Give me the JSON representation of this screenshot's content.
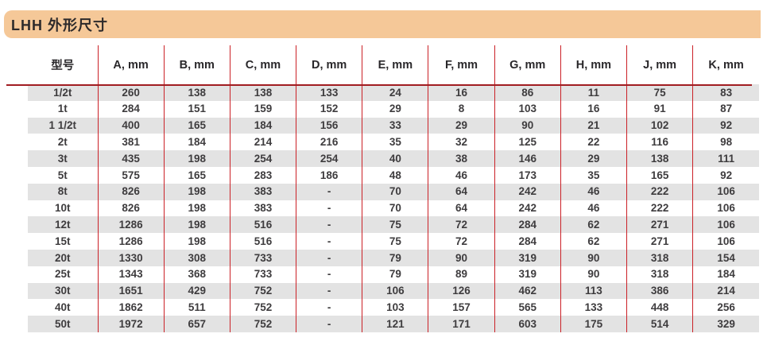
{
  "title": "LHH 外形尺寸",
  "colors": {
    "title_bar_bg": "#f5c898",
    "row_stripe": "#e3e3e3",
    "grid_line_red": "#cb2127",
    "header_rule_red": "#a11d22"
  },
  "table": {
    "columns": [
      "型号",
      "A, mm",
      "B, mm",
      "C, mm",
      "D, mm",
      "E, mm",
      "F, mm",
      "G, mm",
      "H, mm",
      "J, mm",
      "K, mm"
    ],
    "rows": [
      [
        "1/2t",
        "260",
        "138",
        "138",
        "133",
        "24",
        "16",
        "86",
        "11",
        "75",
        "83"
      ],
      [
        "1t",
        "284",
        "151",
        "159",
        "152",
        "29",
        "8",
        "103",
        "16",
        "91",
        "87"
      ],
      [
        "1 1/2t",
        "400",
        "165",
        "184",
        "156",
        "33",
        "29",
        "90",
        "21",
        "102",
        "92"
      ],
      [
        "2t",
        "381",
        "184",
        "214",
        "216",
        "35",
        "32",
        "125",
        "22",
        "116",
        "98"
      ],
      [
        "3t",
        "435",
        "198",
        "254",
        "254",
        "40",
        "38",
        "146",
        "29",
        "138",
        "111"
      ],
      [
        "5t",
        "575",
        "165",
        "283",
        "186",
        "48",
        "46",
        "173",
        "35",
        "165",
        "92"
      ],
      [
        "8t",
        "826",
        "198",
        "383",
        "-",
        "70",
        "64",
        "242",
        "46",
        "222",
        "106"
      ],
      [
        "10t",
        "826",
        "198",
        "383",
        "-",
        "70",
        "64",
        "242",
        "46",
        "222",
        "106"
      ],
      [
        "12t",
        "1286",
        "198",
        "516",
        "-",
        "75",
        "72",
        "284",
        "62",
        "271",
        "106"
      ],
      [
        "15t",
        "1286",
        "198",
        "516",
        "-",
        "75",
        "72",
        "284",
        "62",
        "271",
        "106"
      ],
      [
        "20t",
        "1330",
        "308",
        "733",
        "-",
        "79",
        "90",
        "319",
        "90",
        "318",
        "154"
      ],
      [
        "25t",
        "1343",
        "368",
        "733",
        "-",
        "79",
        "89",
        "319",
        "90",
        "318",
        "184"
      ],
      [
        "30t",
        "1651",
        "429",
        "752",
        "-",
        "106",
        "126",
        "462",
        "113",
        "386",
        "214"
      ],
      [
        "40t",
        "1862",
        "511",
        "752",
        "-",
        "103",
        "157",
        "565",
        "133",
        "448",
        "256"
      ],
      [
        "50t",
        "1972",
        "657",
        "752",
        "-",
        "121",
        "171",
        "603",
        "175",
        "514",
        "329"
      ]
    ]
  }
}
